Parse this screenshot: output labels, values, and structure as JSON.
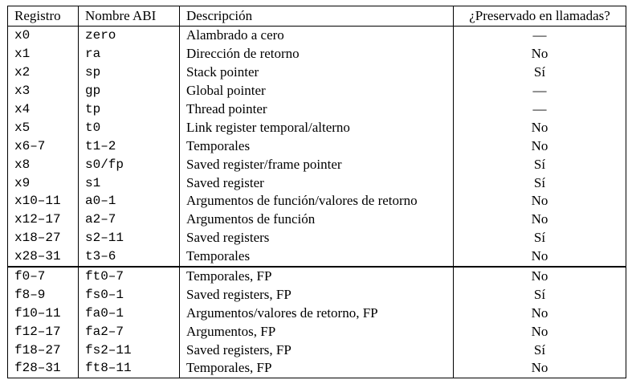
{
  "table": {
    "headers": {
      "register": "Registro",
      "abi_name": "Nombre ABI",
      "description": "Descripción",
      "preserved": "¿Preservado en llamadas?"
    },
    "rows": [
      {
        "register": "x0",
        "abi_name": "zero",
        "description": "Alambrado a cero",
        "preserved": "—"
      },
      {
        "register": "x1",
        "abi_name": "ra",
        "description": "Dirección de retorno",
        "preserved": "No"
      },
      {
        "register": "x2",
        "abi_name": "sp",
        "description": "Stack pointer",
        "preserved": "Sí"
      },
      {
        "register": "x3",
        "abi_name": "gp",
        "description": "Global pointer",
        "preserved": "—"
      },
      {
        "register": "x4",
        "abi_name": "tp",
        "description": "Thread pointer",
        "preserved": "—"
      },
      {
        "register": "x5",
        "abi_name": "t0",
        "description": "Link register temporal/alterno",
        "preserved": "No"
      },
      {
        "register": "x6–7",
        "abi_name": "t1–2",
        "description": "Temporales",
        "preserved": "No"
      },
      {
        "register": "x8",
        "abi_name": "s0/fp",
        "description": "Saved register/frame pointer",
        "preserved": "Sí"
      },
      {
        "register": "x9",
        "abi_name": "s1",
        "description": "Saved register",
        "preserved": "Sí"
      },
      {
        "register": "x10–11",
        "abi_name": "a0–1",
        "description": "Argumentos de función/valores de retorno",
        "preserved": "No"
      },
      {
        "register": "x12–17",
        "abi_name": "a2–7",
        "description": "Argumentos de función",
        "preserved": "No"
      },
      {
        "register": "x18–27",
        "abi_name": "s2–11",
        "description": "Saved registers",
        "preserved": "Sí"
      },
      {
        "register": "x28–31",
        "abi_name": "t3–6",
        "description": "Temporales",
        "preserved": "No"
      },
      {
        "register": "f0–7",
        "abi_name": "ft0–7",
        "description": "Temporales, FP",
        "preserved": "No"
      },
      {
        "register": "f8–9",
        "abi_name": "fs0–1",
        "description": "Saved registers, FP",
        "preserved": "Sí"
      },
      {
        "register": "f10–11",
        "abi_name": "fa0–1",
        "description": "Argumentos/valores de retorno, FP",
        "preserved": "No"
      },
      {
        "register": "f12–17",
        "abi_name": "fa2–7",
        "description": "Argumentos, FP",
        "preserved": "No"
      },
      {
        "register": "f18–27",
        "abi_name": "fs2–11",
        "description": "Saved registers, FP",
        "preserved": "Sí"
      },
      {
        "register": "f28–31",
        "abi_name": "ft8–11",
        "description": "Temporales, FP",
        "preserved": "No"
      }
    ]
  }
}
